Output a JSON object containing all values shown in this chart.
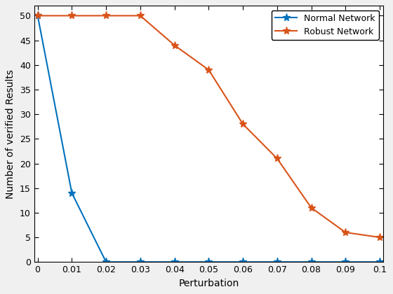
{
  "x": [
    0,
    0.01,
    0.02,
    0.03,
    0.04,
    0.05,
    0.06,
    0.07,
    0.08,
    0.09,
    0.1
  ],
  "normal_network": [
    50,
    14,
    0,
    0,
    0,
    0,
    0,
    0,
    0,
    0,
    0
  ],
  "robust_network": [
    50,
    50,
    50,
    50,
    44,
    39,
    28,
    21,
    11,
    6,
    5
  ],
  "normal_color": "#0072BD",
  "robust_color": "#D95319",
  "xlabel": "Perturbation",
  "ylabel": "Number of verified Results",
  "legend_normal": "Normal Network",
  "legend_robust": "Robust Network",
  "xlim": [
    -0.001,
    0.101
  ],
  "ylim": [
    0,
    52
  ],
  "yticks": [
    0,
    5,
    10,
    15,
    20,
    25,
    30,
    35,
    40,
    45,
    50
  ],
  "xticks": [
    0,
    0.01,
    0.02,
    0.03,
    0.04,
    0.05,
    0.06,
    0.07,
    0.08,
    0.09,
    0.1
  ],
  "fig_facecolor": "#f0f0f0",
  "axes_facecolor": "#ffffff"
}
